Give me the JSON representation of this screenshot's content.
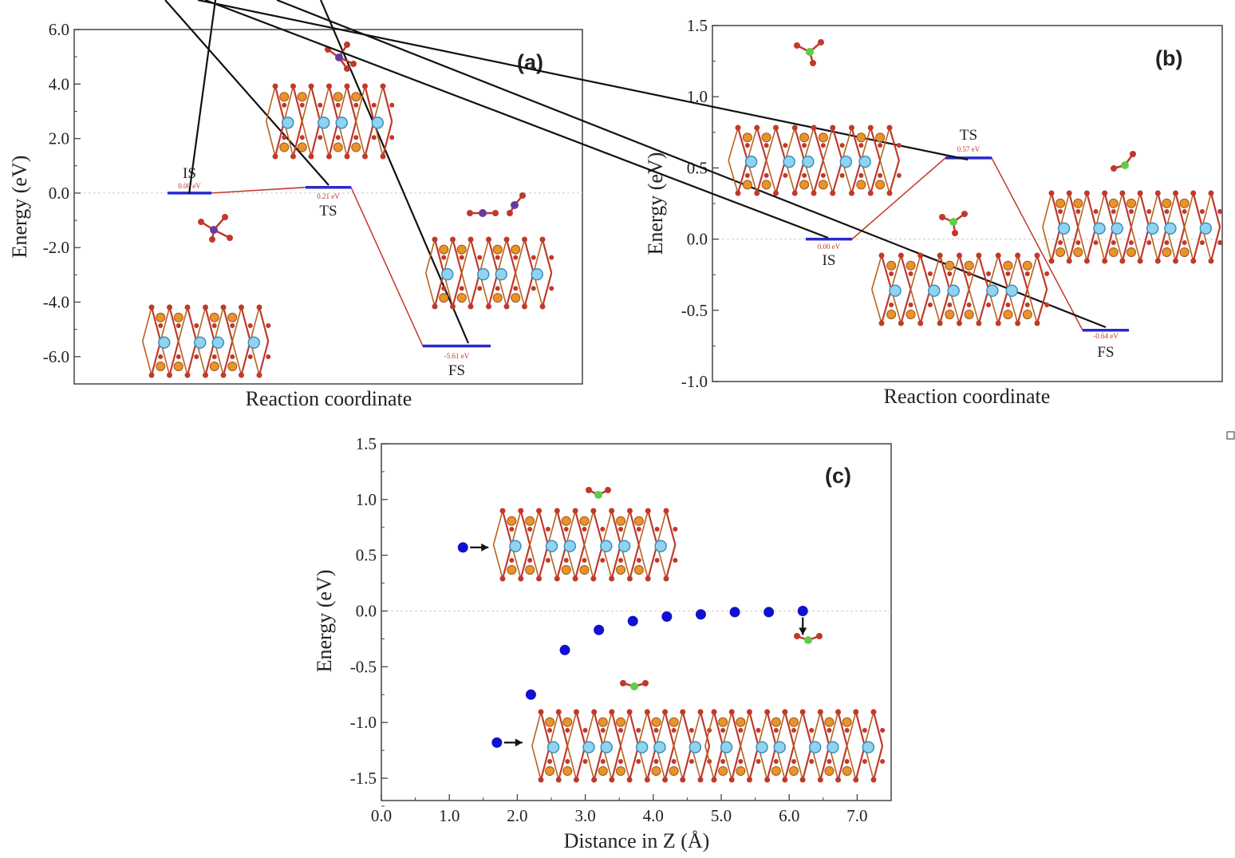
{
  "chart_data": [
    {
      "type": "line",
      "panel_label": "(a)",
      "xlabel": "Reaction coordinate",
      "ylabel": "Energy (eV)",
      "ylim": [
        -7.0,
        6.0
      ],
      "yticks": [
        "6.0",
        "4.0",
        "2.0",
        "0.0",
        "-2.0",
        "-4.0",
        "-6.0"
      ],
      "ytick_values": [
        6,
        4,
        2,
        0,
        -2,
        -4,
        -6
      ],
      "grid": false,
      "states": [
        {
          "name": "IS",
          "energy": 0.0,
          "label": "0.00 eV"
        },
        {
          "name": "TS",
          "energy": 0.21,
          "label": "0.21 eV"
        },
        {
          "name": "FS",
          "energy": -5.61,
          "label": "-5.61 eV"
        }
      ],
      "colors": {
        "level": "#2a2ad0",
        "path": "#c0392b",
        "zero_line": "#cccccc"
      }
    },
    {
      "type": "line",
      "panel_label": "(b)",
      "xlabel": "Reaction coordinate",
      "ylabel": "Energy (eV)",
      "ylim": [
        -1.0,
        1.5
      ],
      "yticks": [
        "1.5",
        "1.0",
        "0.5",
        "0.0",
        "-0.5",
        "-1.0"
      ],
      "ytick_values": [
        1.5,
        1.0,
        0.5,
        0.0,
        -0.5,
        -1.0
      ],
      "grid": false,
      "states": [
        {
          "name": "IS",
          "energy": 0.0,
          "label": "0.00 eV"
        },
        {
          "name": "TS",
          "energy": 0.57,
          "label": "0.57 eV"
        },
        {
          "name": "FS",
          "energy": -0.64,
          "label": "-0.64 eV"
        }
      ],
      "colors": {
        "level": "#2a2ad0",
        "path": "#c0392b",
        "zero_line": "#cccccc"
      }
    },
    {
      "type": "scatter",
      "panel_label": "(c)",
      "xlabel": "Distance in Z (Å)",
      "ylabel": "Energy (eV)",
      "xlim": [
        0.0,
        7.5
      ],
      "ylim": [
        -1.7,
        1.5
      ],
      "xticks": [
        "0.0",
        "1.0",
        "2.0",
        "3.0",
        "4.0",
        "5.0",
        "6.0",
        "7.0"
      ],
      "xtick_values": [
        0,
        1,
        2,
        3,
        4,
        5,
        6,
        7
      ],
      "yticks": [
        "1.5",
        "1.0",
        "0.5",
        "0.0",
        "-0.5",
        "-1.0",
        "-1.5"
      ],
      "ytick_values": [
        1.5,
        1.0,
        0.5,
        0.0,
        -0.5,
        -1.0,
        -1.5
      ],
      "grid": false,
      "x": [
        1.2,
        1.7,
        2.2,
        2.7,
        3.2,
        3.7,
        4.2,
        4.7,
        5.2,
        5.7,
        6.2
      ],
      "y": [
        0.57,
        -1.18,
        -0.75,
        -0.35,
        -0.17,
        -0.09,
        -0.05,
        -0.03,
        -0.01,
        -0.01,
        0.0
      ],
      "colors": {
        "point": "#1010d0",
        "zero_line": "#cccccc"
      }
    }
  ]
}
